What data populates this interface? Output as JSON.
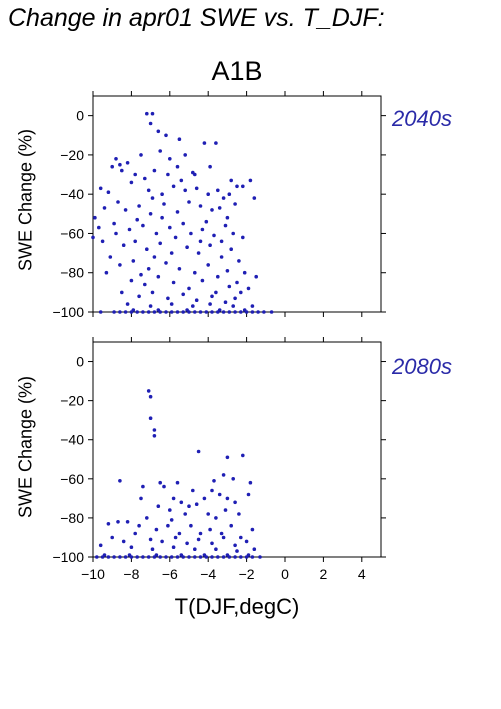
{
  "page": {
    "title": "Change in apr01 SWE vs. T_DJF:",
    "scenario": "A1B"
  },
  "colors": {
    "points": "#1f1fb4",
    "period_label": "#2a2aa8",
    "axes": "#000000"
  },
  "chart_data": [
    {
      "type": "scatter",
      "period_label": "2040s",
      "xlabel": "",
      "ylabel": "SWE Change (%)",
      "xlim": [
        -10,
        5
      ],
      "ylim": [
        -100,
        10
      ],
      "xticks": [
        -10,
        -8,
        -6,
        -4,
        -2,
        0,
        2,
        4
      ],
      "yticks": [
        0,
        -20,
        -40,
        -60,
        -80,
        -100
      ],
      "x_tick_labels_shown": false,
      "grid": false,
      "points": [
        [
          -7.2,
          1
        ],
        [
          -6.9,
          1
        ],
        [
          -7.0,
          -4
        ],
        [
          -6.6,
          -8
        ],
        [
          -6.2,
          -10
        ],
        [
          -5.5,
          -12
        ],
        [
          -4.2,
          -14
        ],
        [
          -3.6,
          -14
        ],
        [
          -8.8,
          -22
        ],
        [
          -8.6,
          -25
        ],
        [
          -8.2,
          -24
        ],
        [
          -7.5,
          -20
        ],
        [
          -6.5,
          -18
        ],
        [
          -6.0,
          -22
        ],
        [
          -5.2,
          -20
        ],
        [
          -3.9,
          -26
        ],
        [
          -9.0,
          -26
        ],
        [
          -8.5,
          -28
        ],
        [
          -7.8,
          -30
        ],
        [
          -7.3,
          -32
        ],
        [
          -6.8,
          -28
        ],
        [
          -6.1,
          -30
        ],
        [
          -5.4,
          -33
        ],
        [
          -4.8,
          -29
        ],
        [
          -2.8,
          -33
        ],
        [
          -2.5,
          -36
        ],
        [
          -2.2,
          -36
        ],
        [
          -1.8,
          -33
        ],
        [
          -8.0,
          -34
        ],
        [
          -9.6,
          -37
        ],
        [
          -9.2,
          -39
        ],
        [
          -7.1,
          -38
        ],
        [
          -6.4,
          -40
        ],
        [
          -5.8,
          -36
        ],
        [
          -4.6,
          -37
        ],
        [
          -4.0,
          -40
        ],
        [
          -3.5,
          -38
        ],
        [
          -3.2,
          -42
        ],
        [
          -2.9,
          -40
        ],
        [
          -1.6,
          -42
        ],
        [
          -9.9,
          -52
        ],
        [
          -9.4,
          -47
        ],
        [
          -8.7,
          -44
        ],
        [
          -8.3,
          -48
        ],
        [
          -7.6,
          -46
        ],
        [
          -7.0,
          -50
        ],
        [
          -6.3,
          -45
        ],
        [
          -5.6,
          -49
        ],
        [
          -5.0,
          -44
        ],
        [
          -4.4,
          -46
        ],
        [
          -3.8,
          -48
        ],
        [
          -3.4,
          -47
        ],
        [
          -3.0,
          -52
        ],
        [
          -2.6,
          -45
        ],
        [
          -4.1,
          -54
        ],
        [
          -5.3,
          -55
        ],
        [
          -8.9,
          -55
        ],
        [
          -8.1,
          -58
        ],
        [
          -7.4,
          -56
        ],
        [
          -6.7,
          -60
        ],
        [
          -6.0,
          -57
        ],
        [
          -5.7,
          -62
        ],
        [
          -4.9,
          -60
        ],
        [
          -4.3,
          -58
        ],
        [
          -3.7,
          -61
        ],
        [
          -3.1,
          -56
        ],
        [
          -2.7,
          -60
        ],
        [
          -9.7,
          -57
        ],
        [
          -10.0,
          -62
        ],
        [
          -9.5,
          -64
        ],
        [
          -8.4,
          -66
        ],
        [
          -7.8,
          -64
        ],
        [
          -7.2,
          -68
        ],
        [
          -6.5,
          -65
        ],
        [
          -5.9,
          -70
        ],
        [
          -5.1,
          -67
        ],
        [
          -4.5,
          -70
        ],
        [
          -3.9,
          -66
        ],
        [
          -3.3,
          -72
        ],
        [
          -2.8,
          -68
        ],
        [
          -2.4,
          -74
        ],
        [
          -9.1,
          -72
        ],
        [
          -8.6,
          -76
        ],
        [
          -7.9,
          -74
        ],
        [
          -7.1,
          -78
        ],
        [
          -6.2,
          -75
        ],
        [
          -5.5,
          -78
        ],
        [
          -4.7,
          -80
        ],
        [
          -4.0,
          -76
        ],
        [
          -3.5,
          -82
        ],
        [
          -3.0,
          -79
        ],
        [
          -2.5,
          -85
        ],
        [
          -2.1,
          -80
        ],
        [
          -1.5,
          -82
        ],
        [
          -9.3,
          -80
        ],
        [
          -8.0,
          -84
        ],
        [
          -7.3,
          -86
        ],
        [
          -6.6,
          -82
        ],
        [
          -5.8,
          -85
        ],
        [
          -5.0,
          -88
        ],
        [
          -4.3,
          -84
        ],
        [
          -3.6,
          -90
        ],
        [
          -2.9,
          -87
        ],
        [
          -2.3,
          -90
        ],
        [
          -1.9,
          -88
        ],
        [
          -8.5,
          -90
        ],
        [
          -7.6,
          -92
        ],
        [
          -6.9,
          -90
        ],
        [
          -6.1,
          -93
        ],
        [
          -5.3,
          -91
        ],
        [
          -4.6,
          -94
        ],
        [
          -3.8,
          -92
        ],
        [
          -3.1,
          -95
        ],
        [
          -2.6,
          -93
        ],
        [
          -8.2,
          -96
        ],
        [
          -7.0,
          -97
        ],
        [
          -5.9,
          -96
        ],
        [
          -4.8,
          -97
        ],
        [
          -3.9,
          -96
        ],
        [
          -2.7,
          -97
        ],
        [
          -1.7,
          -97
        ],
        [
          -6.4,
          -52
        ],
        [
          -5.2,
          -38
        ],
        [
          -4.7,
          -30
        ],
        [
          -6.9,
          -42
        ],
        [
          -7.7,
          -53
        ],
        [
          -8.8,
          -60
        ],
        [
          -3.3,
          -64
        ],
        [
          -2.2,
          -62
        ],
        [
          -5.6,
          -26
        ],
        [
          -4.4,
          -64
        ],
        [
          -6.8,
          -72
        ],
        [
          -7.5,
          -81
        ],
        [
          -8.9,
          -100
        ],
        [
          -8.6,
          -100
        ],
        [
          -8.3,
          -100
        ],
        [
          -8.0,
          -100
        ],
        [
          -7.7,
          -100
        ],
        [
          -7.4,
          -100
        ],
        [
          -7.1,
          -100
        ],
        [
          -6.8,
          -100
        ],
        [
          -6.5,
          -100
        ],
        [
          -6.2,
          -100
        ],
        [
          -5.9,
          -100
        ],
        [
          -5.6,
          -100
        ],
        [
          -5.3,
          -100
        ],
        [
          -5.0,
          -100
        ],
        [
          -4.7,
          -100
        ],
        [
          -4.4,
          -100
        ],
        [
          -4.1,
          -100
        ],
        [
          -3.8,
          -100
        ],
        [
          -3.5,
          -100
        ],
        [
          -3.2,
          -100
        ],
        [
          -2.9,
          -100
        ],
        [
          -2.6,
          -100
        ],
        [
          -2.3,
          -100
        ],
        [
          -2.0,
          -100
        ],
        [
          -1.7,
          -100
        ],
        [
          -1.4,
          -100
        ],
        [
          -1.1,
          -100
        ],
        [
          -0.7,
          -100
        ],
        [
          -9.6,
          -100
        ],
        [
          -7.9,
          -99
        ],
        [
          -6.6,
          -99
        ],
        [
          -5.1,
          -99
        ],
        [
          -3.4,
          -99
        ],
        [
          -2.1,
          -99
        ]
      ]
    },
    {
      "type": "scatter",
      "period_label": "2080s",
      "xlabel": "T(DJF,degC)",
      "ylabel": "SWE Change (%)",
      "xlim": [
        -10,
        5
      ],
      "ylim": [
        -100,
        10
      ],
      "xticks": [
        -10,
        -8,
        -6,
        -4,
        -2,
        0,
        2,
        4
      ],
      "yticks": [
        0,
        -20,
        -40,
        -60,
        -80,
        -100
      ],
      "x_tick_labels_shown": true,
      "grid": false,
      "points": [
        [
          -7.1,
          -15
        ],
        [
          -7.0,
          -18
        ],
        [
          -7.0,
          -29
        ],
        [
          -6.8,
          -35
        ],
        [
          -6.8,
          -38
        ],
        [
          -4.5,
          -46
        ],
        [
          -3.0,
          -49
        ],
        [
          -2.2,
          -48
        ],
        [
          -6.5,
          -62
        ],
        [
          -5.6,
          -62
        ],
        [
          -3.7,
          -61
        ],
        [
          -3.2,
          -58
        ],
        [
          -2.7,
          -60
        ],
        [
          -1.8,
          -62
        ],
        [
          -8.6,
          -61
        ],
        [
          -7.4,
          -64
        ],
        [
          -6.3,
          -64
        ],
        [
          -5.8,
          -70
        ],
        [
          -5.4,
          -72
        ],
        [
          -5.0,
          -74
        ],
        [
          -4.6,
          -73
        ],
        [
          -4.2,
          -70
        ],
        [
          -3.8,
          -66
        ],
        [
          -3.4,
          -68
        ],
        [
          -3.0,
          -70
        ],
        [
          -2.6,
          -72
        ],
        [
          -1.9,
          -68
        ],
        [
          -6.6,
          -74
        ],
        [
          -6.0,
          -76
        ],
        [
          -5.2,
          -78
        ],
        [
          -4.0,
          -78
        ],
        [
          -3.6,
          -80
        ],
        [
          -3.1,
          -76
        ],
        [
          -2.4,
          -78
        ],
        [
          -9.2,
          -83
        ],
        [
          -8.7,
          -82
        ],
        [
          -8.2,
          -82
        ],
        [
          -7.6,
          -84
        ],
        [
          -7.2,
          -80
        ],
        [
          -6.7,
          -86
        ],
        [
          -6.1,
          -84
        ],
        [
          -5.5,
          -88
        ],
        [
          -4.9,
          -84
        ],
        [
          -4.4,
          -88
        ],
        [
          -3.9,
          -86
        ],
        [
          -3.3,
          -88
        ],
        [
          -2.8,
          -84
        ],
        [
          -2.3,
          -90
        ],
        [
          -1.7,
          -86
        ],
        [
          -9.0,
          -90
        ],
        [
          -8.4,
          -92
        ],
        [
          -7.8,
          -88
        ],
        [
          -7.0,
          -91
        ],
        [
          -6.4,
          -92
        ],
        [
          -5.7,
          -90
        ],
        [
          -5.1,
          -93
        ],
        [
          -4.5,
          -91
        ],
        [
          -3.8,
          -93
        ],
        [
          -3.2,
          -90
        ],
        [
          -2.6,
          -94
        ],
        [
          -2.0,
          -92
        ],
        [
          -9.6,
          -94
        ],
        [
          -8.0,
          -95
        ],
        [
          -6.9,
          -96
        ],
        [
          -5.8,
          -95
        ],
        [
          -4.7,
          -96
        ],
        [
          -3.6,
          -96
        ],
        [
          -2.5,
          -97
        ],
        [
          -1.6,
          -96
        ],
        [
          -9.8,
          -100
        ],
        [
          -9.5,
          -100
        ],
        [
          -9.2,
          -100
        ],
        [
          -8.9,
          -100
        ],
        [
          -8.6,
          -100
        ],
        [
          -8.3,
          -100
        ],
        [
          -8.0,
          -100
        ],
        [
          -7.7,
          -100
        ],
        [
          -7.4,
          -100
        ],
        [
          -7.1,
          -100
        ],
        [
          -6.8,
          -100
        ],
        [
          -6.5,
          -100
        ],
        [
          -6.2,
          -100
        ],
        [
          -5.9,
          -100
        ],
        [
          -5.6,
          -100
        ],
        [
          -5.3,
          -100
        ],
        [
          -5.0,
          -100
        ],
        [
          -4.7,
          -100
        ],
        [
          -4.4,
          -100
        ],
        [
          -4.1,
          -100
        ],
        [
          -3.8,
          -100
        ],
        [
          -3.5,
          -100
        ],
        [
          -3.2,
          -100
        ],
        [
          -2.9,
          -100
        ],
        [
          -2.6,
          -100
        ],
        [
          -2.3,
          -100
        ],
        [
          -2.0,
          -100
        ],
        [
          -1.7,
          -100
        ],
        [
          -1.3,
          -100
        ],
        [
          -9.4,
          -99
        ],
        [
          -8.1,
          -99
        ],
        [
          -6.7,
          -99
        ],
        [
          -5.4,
          -99
        ],
        [
          -4.2,
          -99
        ],
        [
          -3.0,
          -99
        ],
        [
          -1.9,
          -99
        ],
        [
          -4.8,
          -66
        ],
        [
          -5.9,
          -81
        ],
        [
          -7.5,
          -70
        ]
      ]
    }
  ]
}
